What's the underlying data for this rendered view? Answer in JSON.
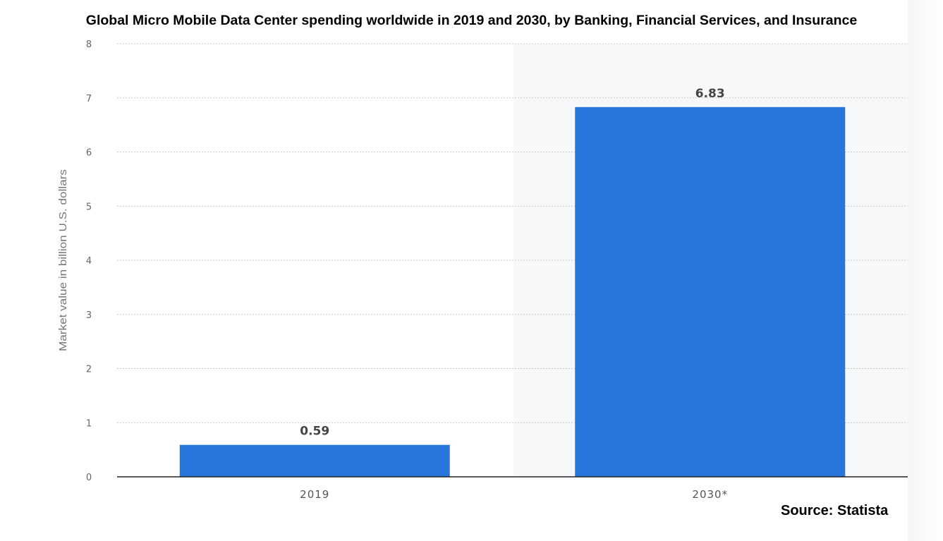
{
  "chart_data": {
    "type": "bar",
    "title": "Global Micro Mobile Data Center spending worldwide in 2019 and 2030, by  Banking, Financial Services, and Insurance",
    "xlabel": "",
    "ylabel": "Market value in billion U.S. dollars",
    "categories": [
      "2019",
      "2030*"
    ],
    "values": [
      0.59,
      6.83
    ],
    "data_labels": [
      "0.59",
      "6.83"
    ],
    "ylim": [
      0,
      8
    ],
    "yticks": [
      "0",
      "1",
      "2",
      "3",
      "4",
      "5",
      "6",
      "7",
      "8"
    ],
    "grid": true,
    "forecast_shaded_category": "2030*",
    "bar_color": "#2875dc",
    "source": "Source: Statista"
  }
}
